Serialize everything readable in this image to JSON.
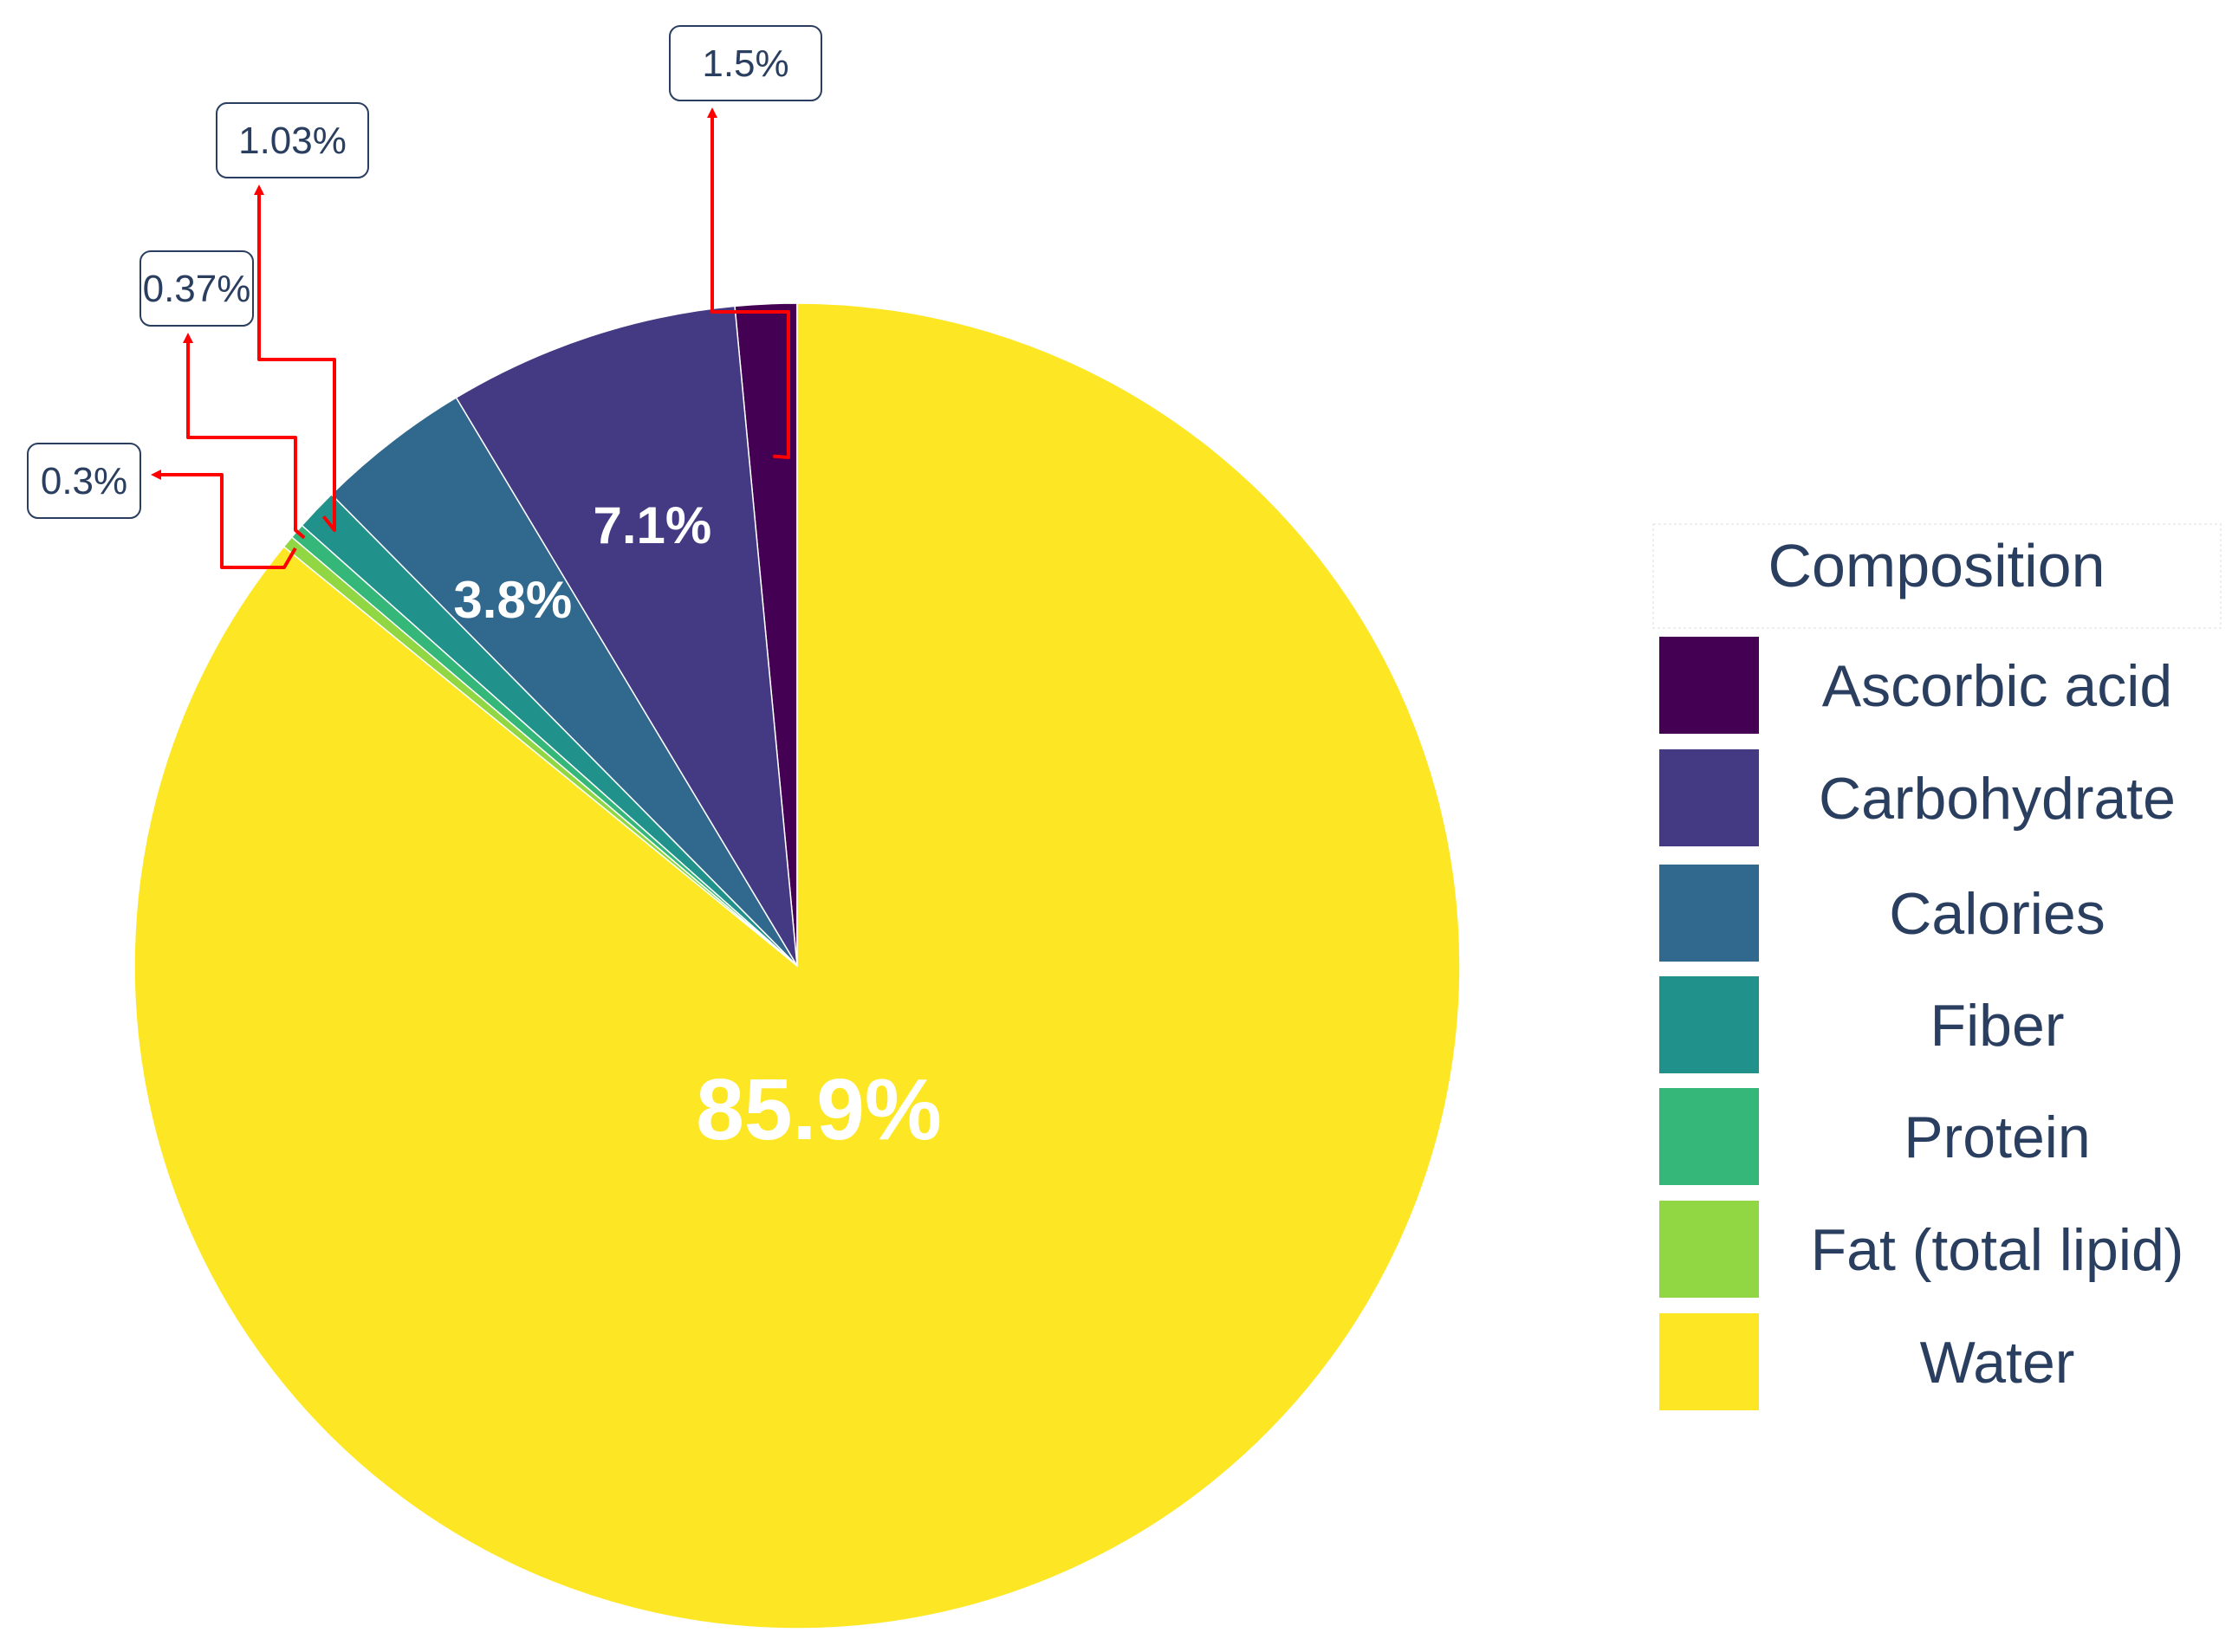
{
  "chart_data": {
    "type": "pie",
    "slices": [
      {
        "label": "Ascorbic acid",
        "value": 1.5,
        "color": "#440154",
        "display": "1.5%"
      },
      {
        "label": "Carbohydrate",
        "value": 7.1,
        "color": "#443983",
        "display": "7.1%"
      },
      {
        "label": "Calories",
        "value": 3.8,
        "color": "#31688e",
        "display": "3.8%"
      },
      {
        "label": "Fiber",
        "value": 1.03,
        "color": "#21918c",
        "display": "1.03%"
      },
      {
        "label": "Protein",
        "value": 0.37,
        "color": "#35b779",
        "display": "0.37%"
      },
      {
        "label": "Fat (total lipid)",
        "value": 0.3,
        "color": "#90d743",
        "display": "0.3%"
      },
      {
        "label": "Water",
        "value": 85.9,
        "color": "#fde725",
        "display": "85.9%"
      }
    ],
    "legend": {
      "title": "Composition",
      "position": "right"
    },
    "direction": "counterclockwise",
    "callout_color": "#ff0000"
  }
}
